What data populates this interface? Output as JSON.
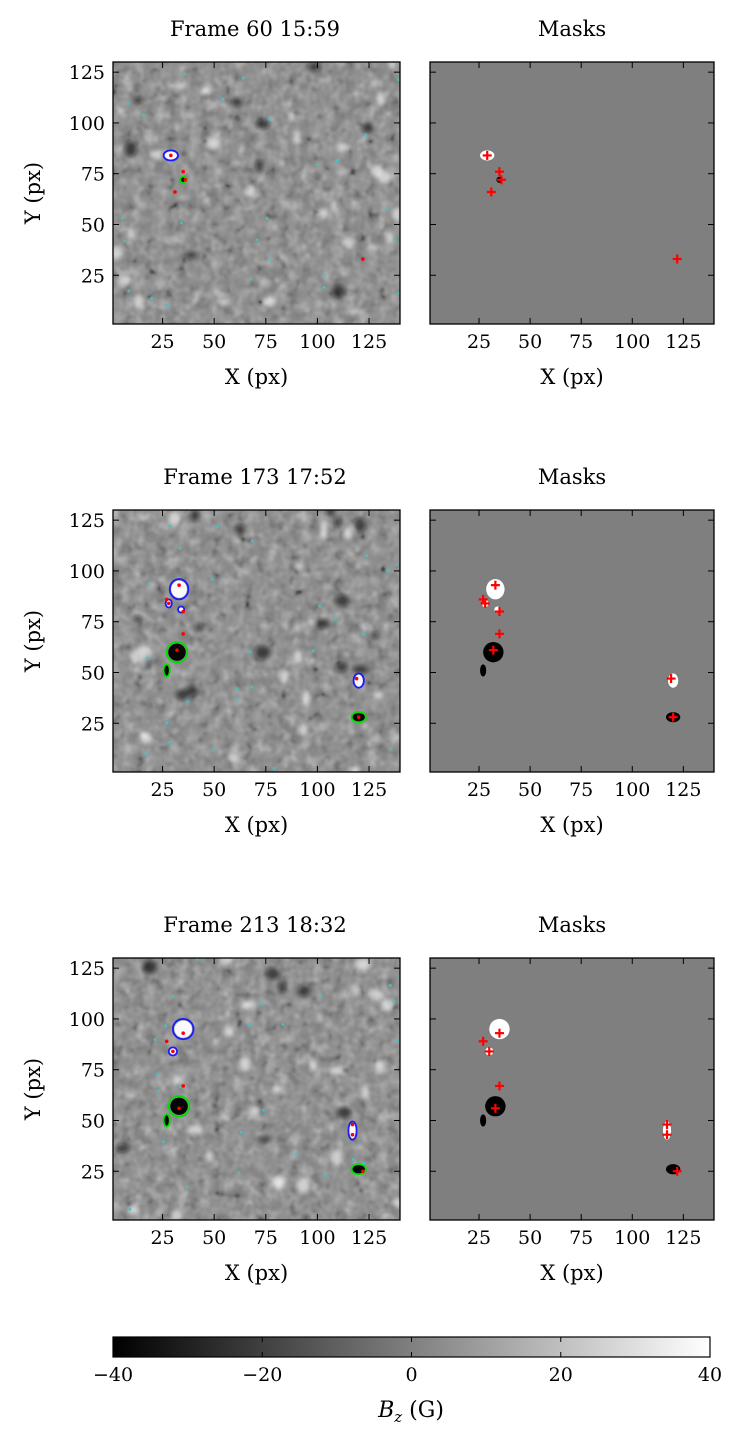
{
  "chart_data": {
    "type": "heatmap",
    "axis_x_label": "X (px)",
    "axis_y_label": "Y (px)",
    "xlim": [
      1,
      140
    ],
    "ylim": [
      1,
      130
    ],
    "x_ticks": [
      25,
      50,
      75,
      100,
      125
    ],
    "y_ticks": [
      25,
      50,
      75,
      100,
      125
    ],
    "x_tick_labels": [
      "25",
      "50",
      "75",
      "100",
      "125"
    ],
    "y_tick_labels": [
      "25",
      "50",
      "75",
      "100",
      "125"
    ],
    "grid": false,
    "colorbar": {
      "label": "B_z (G)",
      "label_main": "B",
      "label_sub": "z",
      "label_unit": " (G)",
      "range": [
        -40,
        40
      ],
      "ticks": [
        -40,
        -20,
        0,
        20,
        40
      ],
      "tick_labels": [
        "−40",
        "−20",
        "0",
        "20",
        "40"
      ],
      "colormap": "grayscale"
    },
    "colors": {
      "positive_contour": "#1a1aff",
      "negative_contour": "#00dd00",
      "marker": "#ff0000",
      "mask_background": "#7f7f7f",
      "mask_positive": "#ffffff",
      "mask_negative": "#000000",
      "dots": "#40c4c4"
    },
    "panels": [
      {
        "title": "Frame 60 15:59",
        "mask_title": "Masks",
        "features": [
          {
            "polarity": "positive",
            "x": 29,
            "y": 84,
            "rx": 3.5,
            "ry": 2.5
          },
          {
            "polarity": "negative",
            "x": 35,
            "y": 72,
            "rx": 1.5,
            "ry": 1.5
          }
        ],
        "markers": [
          [
            29,
            84
          ],
          [
            35,
            76
          ],
          [
            36,
            72
          ],
          [
            31,
            66
          ],
          [
            122,
            33
          ]
        ]
      },
      {
        "title": "Frame 173 17:52",
        "mask_title": "Masks",
        "features": [
          {
            "polarity": "positive",
            "x": 33,
            "y": 91,
            "rx": 4.5,
            "ry": 5
          },
          {
            "polarity": "positive",
            "x": 28,
            "y": 84,
            "rx": 1.5,
            "ry": 2
          },
          {
            "polarity": "positive",
            "x": 34,
            "y": 81,
            "rx": 1.5,
            "ry": 1.5
          },
          {
            "polarity": "negative",
            "x": 32,
            "y": 60,
            "rx": 5,
            "ry": 5
          },
          {
            "polarity": "negative",
            "x": 27,
            "y": 51,
            "rx": 1.5,
            "ry": 3
          },
          {
            "polarity": "positive",
            "x": 120,
            "y": 46,
            "rx": 2.5,
            "ry": 3.5
          },
          {
            "polarity": "negative",
            "x": 120,
            "y": 28,
            "rx": 3.5,
            "ry": 2.5
          }
        ],
        "markers": [
          [
            33,
            93
          ],
          [
            27,
            86
          ],
          [
            28,
            84
          ],
          [
            35,
            80
          ],
          [
            35,
            69
          ],
          [
            32,
            61
          ],
          [
            119,
            47
          ],
          [
            120,
            28
          ]
        ]
      },
      {
        "title": "Frame 213 18:32",
        "mask_title": "Masks",
        "features": [
          {
            "polarity": "positive",
            "x": 35,
            "y": 95,
            "rx": 5,
            "ry": 5
          },
          {
            "polarity": "positive",
            "x": 30,
            "y": 84,
            "rx": 2,
            "ry": 2
          },
          {
            "polarity": "negative",
            "x": 33,
            "y": 57,
            "rx": 5,
            "ry": 5
          },
          {
            "polarity": "negative",
            "x": 27,
            "y": 50,
            "rx": 1.5,
            "ry": 3
          },
          {
            "polarity": "positive",
            "x": 117,
            "y": 45,
            "rx": 2,
            "ry": 4.5
          },
          {
            "polarity": "negative",
            "x": 120,
            "y": 26,
            "rx": 3.5,
            "ry": 2.5
          }
        ],
        "markers": [
          [
            35,
            93
          ],
          [
            27,
            89
          ],
          [
            30,
            84
          ],
          [
            35,
            67
          ],
          [
            33,
            56
          ],
          [
            117,
            48
          ],
          [
            117,
            43
          ],
          [
            122,
            25
          ]
        ]
      }
    ]
  }
}
